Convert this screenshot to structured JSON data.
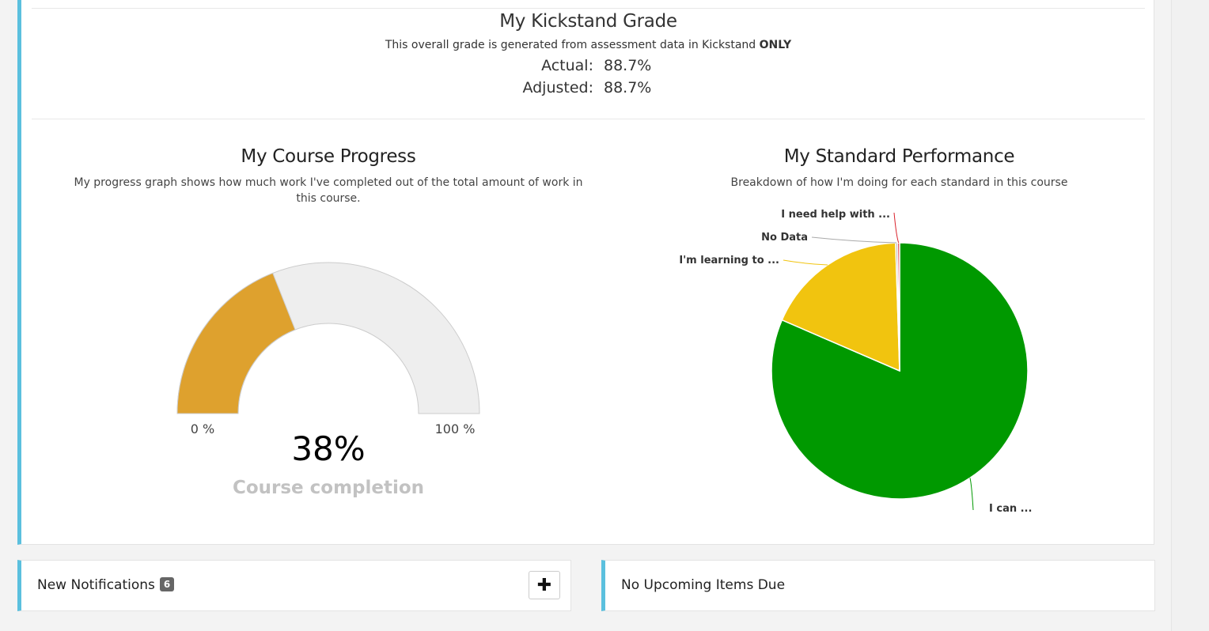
{
  "grade": {
    "title": "My Kickstand Grade",
    "subtitle_text": "This overall grade is generated from assessment data in Kickstand",
    "subtitle_emphasis": "ONLY",
    "actual_label": "Actual:",
    "actual_value": "88.7%",
    "adjusted_label": "Adjusted:",
    "adjusted_value": "88.7%"
  },
  "progress": {
    "title": "My Course Progress",
    "subtitle": "My progress graph shows how much work I've completed out of the total amount of work in this course.",
    "min_label": "0 %",
    "max_label": "100 %",
    "value_label": "38%",
    "caption": "Course completion",
    "value_fraction": 0.38,
    "fill_color": "#dea12e",
    "track_color": "#eeeeee"
  },
  "standards": {
    "title": "My Standard Performance",
    "subtitle": "Breakdown of how I'm doing for each standard in this course"
  },
  "chart_data": {
    "type": "pie",
    "slices": [
      {
        "label": "I can ...",
        "value": 81.5,
        "color": "#009900"
      },
      {
        "label": "I'm learning to ...",
        "value": 18.0,
        "color": "#f1c40f"
      },
      {
        "label": "No Data",
        "value": 0.25,
        "color": "#aaaaaa"
      },
      {
        "label": "I need help with ...",
        "value": 0.25,
        "color": "#d9202a"
      }
    ]
  },
  "notifications": {
    "title": "New Notifications",
    "count": "6",
    "add_icon": "plus-icon"
  },
  "upcoming": {
    "title": "No Upcoming Items Due"
  }
}
